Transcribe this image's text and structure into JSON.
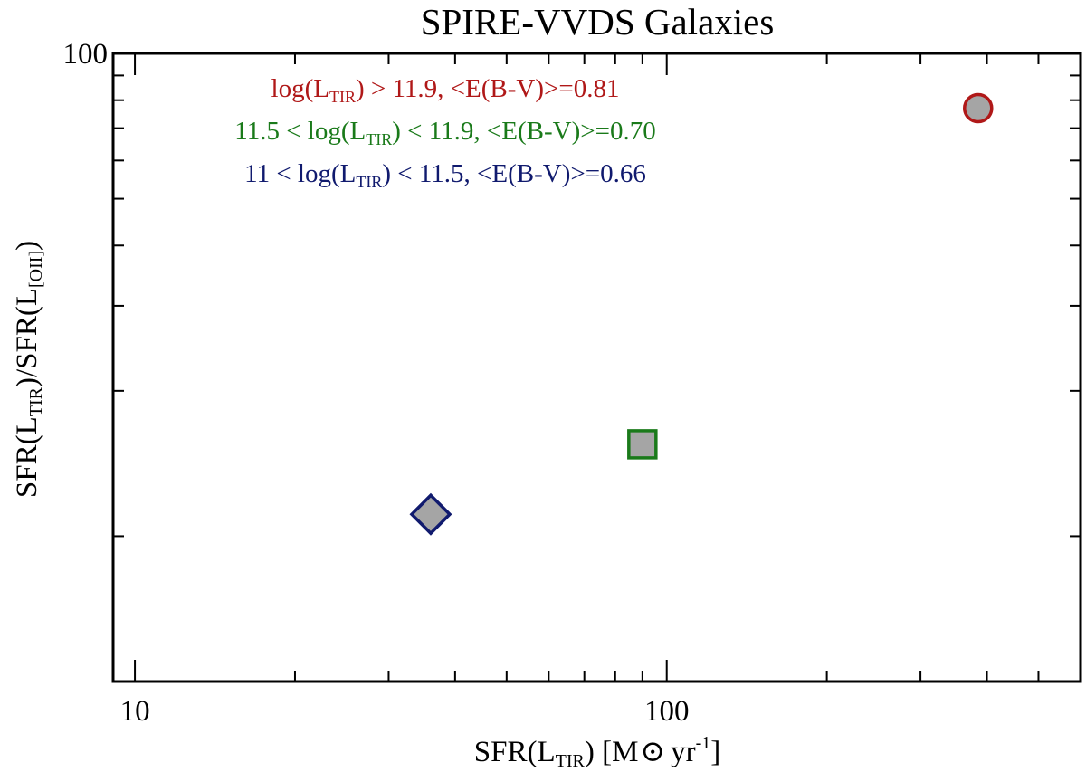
{
  "chart_data": {
    "type": "scatter",
    "title": "SPIRE-VVDS Galaxies",
    "xlabel": {
      "base": "SFR(L",
      "sub": "TIR",
      "rest": ") [M",
      "sun": "⊙",
      "unit": "yr",
      "sup": "-1",
      "close": "]"
    },
    "ylabel": {
      "a": "SFR(L",
      "sub1": "TIR",
      "b": ")/SFR(L",
      "sub2": "[OII]",
      "c": ")"
    },
    "x_scale": "log",
    "y_scale": "log",
    "xlim": [
      9.1,
      600
    ],
    "ylim": [
      5.0,
      100
    ],
    "x_ticks": [
      {
        "value": 10,
        "label": "10"
      },
      {
        "value": 100,
        "label": "100"
      }
    ],
    "y_ticks": [
      {
        "value": 100,
        "label": "100"
      }
    ],
    "y_minor": [
      90,
      80,
      70,
      60,
      50,
      40,
      30,
      20,
      10
    ],
    "grid": false,
    "legend": [
      {
        "pre": "log(L",
        "sub": "TIR",
        "post": ") > 11.9, <E(B-V)>=0.81",
        "color": "#b01818"
      },
      {
        "pre": "11.5 < log(L",
        "sub": "TIR",
        "post": ") < 11.9, <E(B-V)>=0.70",
        "color": "#1a7a1a"
      },
      {
        "pre": "11 < log(L",
        "sub": "TIR",
        "post": ") < 11.5, <E(B-V)>=0.66",
        "color": "#101a6e"
      }
    ],
    "series": [
      {
        "name": "log(L_TIR) > 11.9",
        "marker": "circle",
        "color": "#b01818",
        "fill": "#a5a5a5",
        "x": 385,
        "y": 77,
        "yerr": 1.5
      },
      {
        "name": "11.5 < log(L_TIR) < 11.9",
        "marker": "square",
        "color": "#1a7a1a",
        "fill": "#a5a5a5",
        "x": 90,
        "y": 15.5,
        "yerr": 0.3
      },
      {
        "name": "11 < log(L_TIR) < 11.5",
        "marker": "diamond",
        "color": "#101a6e",
        "fill": "#a5a5a5",
        "x": 36,
        "y": 11.1,
        "yerr": 0
      }
    ]
  }
}
